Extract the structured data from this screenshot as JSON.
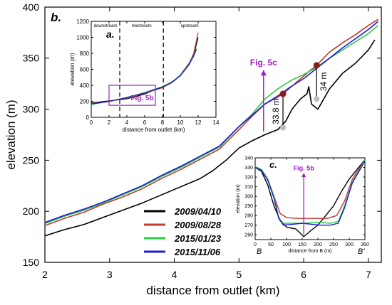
{
  "chart_data": [
    {
      "panel": "b.",
      "type": "line",
      "xlabel": "distance from outlet (km)",
      "ylabel": "elevation (m)",
      "xlim": [
        2,
        7.2
      ],
      "ylim": [
        150,
        400
      ],
      "xticks": [
        2,
        3,
        4,
        5,
        6,
        7
      ],
      "yticks": [
        150,
        200,
        250,
        300,
        350,
        400
      ],
      "legend_position": "bottom-center",
      "series": [
        {
          "name": "2009/04/10",
          "color": "#000000",
          "points": [
            [
              2.0,
              176
            ],
            [
              2.3,
              182
            ],
            [
              2.6,
              187
            ],
            [
              2.9,
              194
            ],
            [
              3.2,
              201
            ],
            [
              3.5,
              208
            ],
            [
              3.8,
              216
            ],
            [
              4.1,
              224
            ],
            [
              4.4,
              232
            ],
            [
              4.6,
              240
            ],
            [
              4.8,
              250
            ],
            [
              5.0,
              262
            ],
            [
              5.2,
              269
            ],
            [
              5.4,
              275
            ],
            [
              5.6,
              280
            ],
            [
              5.72,
              288
            ],
            [
              5.82,
              300
            ],
            [
              5.95,
              310
            ],
            [
              6.05,
              315
            ],
            [
              6.08,
              322
            ],
            [
              6.12,
              305
            ],
            [
              6.22,
              300
            ],
            [
              6.4,
              320
            ],
            [
              6.6,
              335
            ],
            [
              6.8,
              345
            ],
            [
              7.0,
              358
            ],
            [
              7.1,
              368
            ]
          ]
        },
        {
          "name": "2009/08/28",
          "color": "#c0392b",
          "points": [
            [
              2.0,
              186
            ],
            [
              2.3,
              193
            ],
            [
              2.6,
              199
            ],
            [
              2.9,
              207
            ],
            [
              3.2,
              214
            ],
            [
              3.5,
              222
            ],
            [
              3.8,
              232
            ],
            [
              4.1,
              241
            ],
            [
              4.4,
              251
            ],
            [
              4.7,
              261
            ],
            [
              5.0,
              280
            ],
            [
              5.2,
              293
            ],
            [
              5.4,
              305
            ],
            [
              5.6,
              312
            ],
            [
              5.68,
              315
            ],
            [
              5.9,
              327
            ],
            [
              6.1,
              338
            ],
            [
              6.2,
              343
            ],
            [
              6.4,
              356
            ],
            [
              6.6,
              365
            ],
            [
              6.8,
              373
            ],
            [
              7.0,
              382
            ],
            [
              7.15,
              388
            ]
          ]
        },
        {
          "name": "2015/01/23",
          "color": "#2ecc40",
          "points": [
            [
              2.0,
              188
            ],
            [
              2.3,
              195
            ],
            [
              2.6,
              201
            ],
            [
              2.9,
              208
            ],
            [
              3.2,
              216
            ],
            [
              3.5,
              224
            ],
            [
              3.8,
              234
            ],
            [
              4.1,
              243
            ],
            [
              4.4,
              253
            ],
            [
              4.7,
              263
            ],
            [
              5.0,
              283
            ],
            [
              5.2,
              295
            ],
            [
              5.4,
              310
            ],
            [
              5.6,
              320
            ],
            [
              5.8,
              328
            ],
            [
              6.0,
              334
            ],
            [
              6.2,
              341
            ],
            [
              6.4,
              350
            ],
            [
              6.6,
              358
            ],
            [
              6.8,
              366
            ],
            [
              7.0,
              374
            ],
            [
              7.15,
              382
            ]
          ]
        },
        {
          "name": "2015/11/06",
          "color": "#1a1adb",
          "points": [
            [
              2.0,
              189
            ],
            [
              2.3,
              196
            ],
            [
              2.6,
              202
            ],
            [
              2.9,
              209
            ],
            [
              3.2,
              217
            ],
            [
              3.5,
              225
            ],
            [
              3.8,
              235
            ],
            [
              4.1,
              244
            ],
            [
              4.4,
              254
            ],
            [
              4.7,
              264
            ],
            [
              5.0,
              283
            ],
            [
              5.2,
              294
            ],
            [
              5.4,
              305
            ],
            [
              5.6,
              313
            ],
            [
              5.8,
              322
            ],
            [
              6.0,
              330
            ],
            [
              6.2,
              340
            ],
            [
              6.4,
              350
            ],
            [
              6.6,
              360
            ],
            [
              6.8,
              369
            ],
            [
              7.0,
              378
            ],
            [
              7.15,
              386
            ]
          ]
        }
      ],
      "annotations": [
        {
          "text": "Fig. 5c",
          "x": 5.38,
          "color": "#a020c0"
        },
        {
          "text": "33.8 m",
          "x": 5.68
        },
        {
          "text": "34 m",
          "x": 6.2
        }
      ]
    },
    {
      "panel": "a.",
      "type": "line",
      "xlabel": "distance from outlet (km)",
      "ylabel": "elevation (m)",
      "xlim": [
        0,
        14
      ],
      "ylim": [
        0,
        1200
      ],
      "xticks": [
        0,
        2,
        4,
        6,
        8,
        10,
        12,
        14
      ],
      "yticks": [
        0,
        200,
        400,
        600,
        800,
        1000,
        1200
      ],
      "zones": [
        "downstream",
        "midstream",
        "upstream"
      ],
      "zone_boundaries_km": [
        3.2,
        8.1
      ],
      "box_label": "Fig. 5b",
      "box_range": {
        "x": [
          2,
          7.2
        ],
        "y": [
          150,
          400
        ]
      },
      "series": [
        {
          "name": "2009/04/10",
          "color": "#000000",
          "points": [
            [
              0,
              180
            ],
            [
              2,
              205
            ],
            [
              4,
              232
            ],
            [
              6,
              290
            ],
            [
              7,
              340
            ],
            [
              8,
              380
            ],
            [
              9,
              430
            ],
            [
              10,
              520
            ],
            [
              11,
              660
            ],
            [
              11.5,
              780
            ],
            [
              12,
              1000
            ]
          ]
        },
        {
          "name": "2009/08/28",
          "color": "#c0392b",
          "points": [
            [
              0,
              170
            ],
            [
              2,
              196
            ],
            [
              4,
              245
            ],
            [
              6,
              300
            ],
            [
              8,
              370
            ],
            [
              9,
              430
            ],
            [
              10,
              530
            ],
            [
              11,
              680
            ],
            [
              11.5,
              800
            ],
            [
              12,
              1060
            ]
          ]
        },
        {
          "name": "2015/01/23",
          "color": "#2ecc40",
          "points": [
            [
              0,
              160
            ],
            [
              2,
              200
            ],
            [
              4,
              250
            ],
            [
              6,
              310
            ],
            [
              8,
              385
            ],
            [
              9,
              440
            ],
            [
              10,
              525
            ],
            [
              11,
              670
            ],
            [
              11.5,
              770
            ],
            [
              11.8,
              860
            ]
          ]
        },
        {
          "name": "2015/11/06",
          "color": "#1a1adb",
          "points": [
            [
              0,
              165
            ],
            [
              2,
              198
            ],
            [
              4,
              248
            ],
            [
              6,
              305
            ],
            [
              8,
              380
            ],
            [
              9,
              435
            ],
            [
              10,
              520
            ],
            [
              11,
              665
            ],
            [
              11.5,
              765
            ],
            [
              11.8,
              850
            ]
          ]
        }
      ]
    },
    {
      "panel": "c.",
      "type": "line",
      "xlabel": "distance from B  (m)",
      "ylabel": "elevation (m)",
      "xlim": [
        0,
        350
      ],
      "ylim": [
        255,
        340
      ],
      "xticks": [
        0,
        50,
        100,
        150,
        200,
        250,
        300,
        350
      ],
      "yticks": [
        260,
        270,
        280,
        290,
        300,
        310,
        320,
        330,
        340
      ],
      "left_label": "B",
      "right_label": "B'",
      "arrow_label": "Fig. 5b",
      "arrow_x": 155,
      "series": [
        {
          "name": "2009/04/10",
          "color": "#000000",
          "points": [
            [
              0,
              330
            ],
            [
              20,
              326
            ],
            [
              40,
              312
            ],
            [
              60,
              290
            ],
            [
              80,
              275
            ],
            [
              100,
              268
            ],
            [
              130,
              266
            ],
            [
              155,
              258
            ],
            [
              180,
              265
            ],
            [
              200,
              270
            ],
            [
              220,
              278
            ],
            [
              250,
              290
            ],
            [
              275,
              305
            ],
            [
              300,
              318
            ],
            [
              330,
              330
            ],
            [
              350,
              338
            ]
          ]
        },
        {
          "name": "2009/08/28",
          "color": "#c0392b",
          "points": [
            [
              0,
              330
            ],
            [
              20,
              327
            ],
            [
              40,
              318
            ],
            [
              60,
              300
            ],
            [
              80,
              282
            ],
            [
              100,
              278
            ],
            [
              130,
              277
            ],
            [
              160,
              277
            ],
            [
              200,
              277
            ],
            [
              230,
              277
            ],
            [
              260,
              280
            ],
            [
              285,
              295
            ],
            [
              310,
              318
            ],
            [
              340,
              333
            ],
            [
              350,
              338
            ]
          ]
        },
        {
          "name": "2015/01/23",
          "color": "#2ecc40",
          "points": [
            [
              0,
              331
            ],
            [
              20,
              328
            ],
            [
              40,
              318
            ],
            [
              60,
              300
            ],
            [
              75,
              278
            ],
            [
              90,
              272
            ],
            [
              130,
              272
            ],
            [
              160,
              272
            ],
            [
              200,
              273
            ],
            [
              240,
              272
            ],
            [
              265,
              274
            ],
            [
              285,
              290
            ],
            [
              310,
              315
            ],
            [
              340,
              332
            ],
            [
              350,
              338
            ]
          ]
        },
        {
          "name": "2015/11/06",
          "color": "#1a1adb",
          "points": [
            [
              0,
              330
            ],
            [
              20,
              327
            ],
            [
              40,
              317
            ],
            [
              60,
              298
            ],
            [
              75,
              277
            ],
            [
              90,
              270
            ],
            [
              120,
              271
            ],
            [
              150,
              272
            ],
            [
              180,
              271
            ],
            [
              210,
              270
            ],
            [
              240,
              270
            ],
            [
              265,
              272
            ],
            [
              285,
              288
            ],
            [
              310,
              314
            ],
            [
              340,
              331
            ],
            [
              350,
              337
            ]
          ]
        }
      ]
    }
  ]
}
